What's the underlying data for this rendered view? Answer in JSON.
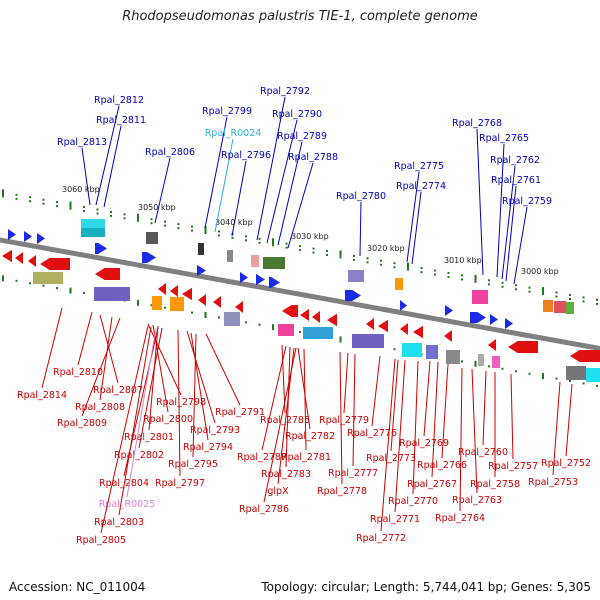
{
  "title": "Rhodopseudomonas palustris TIE-1, complete genome",
  "footer": {
    "accession": "Accession: NC_011004",
    "topology": "Topology: circular; Length: 5,744,041 bp; Genes: 5,305"
  },
  "colors": {
    "backbone": "#808080",
    "forward": "#1a2be6",
    "reverse": "#e01010",
    "tick_major": "#1a7a1a",
    "tick_minor": "#1a7a1a",
    "label_forward": "#0000bb",
    "label_reverse": "#cc0000",
    "label_rna": "#30b0d8",
    "label_rna_reverse": "#e080d0"
  },
  "scale": {
    "ticks_kbp": [
      "3060 kbp",
      "3050 kbp",
      "3040 kbp",
      "3030 kbp",
      "3020 kbp",
      "3010 kbp",
      "3000 kbp"
    ]
  },
  "forward_labels": [
    "Rpal_2812",
    "Rpal_2811",
    "Rpal_2813",
    "Rpal_2806",
    "Rpal_2799",
    "Rpal_R0024",
    "Rpal_2796",
    "Rpal_2792",
    "Rpal_2790",
    "Rpal_2789",
    "Rpal_2788",
    "Rpal_2780",
    "Rpal_2775",
    "Rpal_2774",
    "Rpal_2768",
    "Rpal_2765",
    "Rpal_2762",
    "Rpal_2761",
    "Rpal_2759"
  ],
  "reverse_labels": [
    "Rpal_2810",
    "Rpal_2814",
    "Rpal_2807",
    "Rpal_2808",
    "Rpal_2809",
    "Rpal_2798",
    "Rpal_2800",
    "Rpal_2791",
    "Rpal_2793",
    "Rpal_2801",
    "Rpal_2794",
    "Rpal_2802",
    "Rpal_2795",
    "Rpal_2804",
    "Rpal_2797",
    "Rpal_R0025",
    "Rpal_2803",
    "Rpal_2805",
    "Rpal_2785",
    "Rpal_2779",
    "Rpal_2782",
    "Rpal_2776",
    "Rpal_2787",
    "Rpal_2781",
    "Rpal_2783",
    "Rpal_2777",
    "glpX",
    "Rpal_2778",
    "Rpal_2786",
    "Rpal_2769",
    "Rpal_2773",
    "Rpal_2766",
    "Rpal_2767",
    "Rpal_2770",
    "Rpal_2771",
    "Rpal_2772",
    "Rpal_2760",
    "Rpal_2757",
    "Rpal_2758",
    "Rpal_2763",
    "Rpal_2764",
    "Rpal_2752",
    "Rpal_2753"
  ]
}
